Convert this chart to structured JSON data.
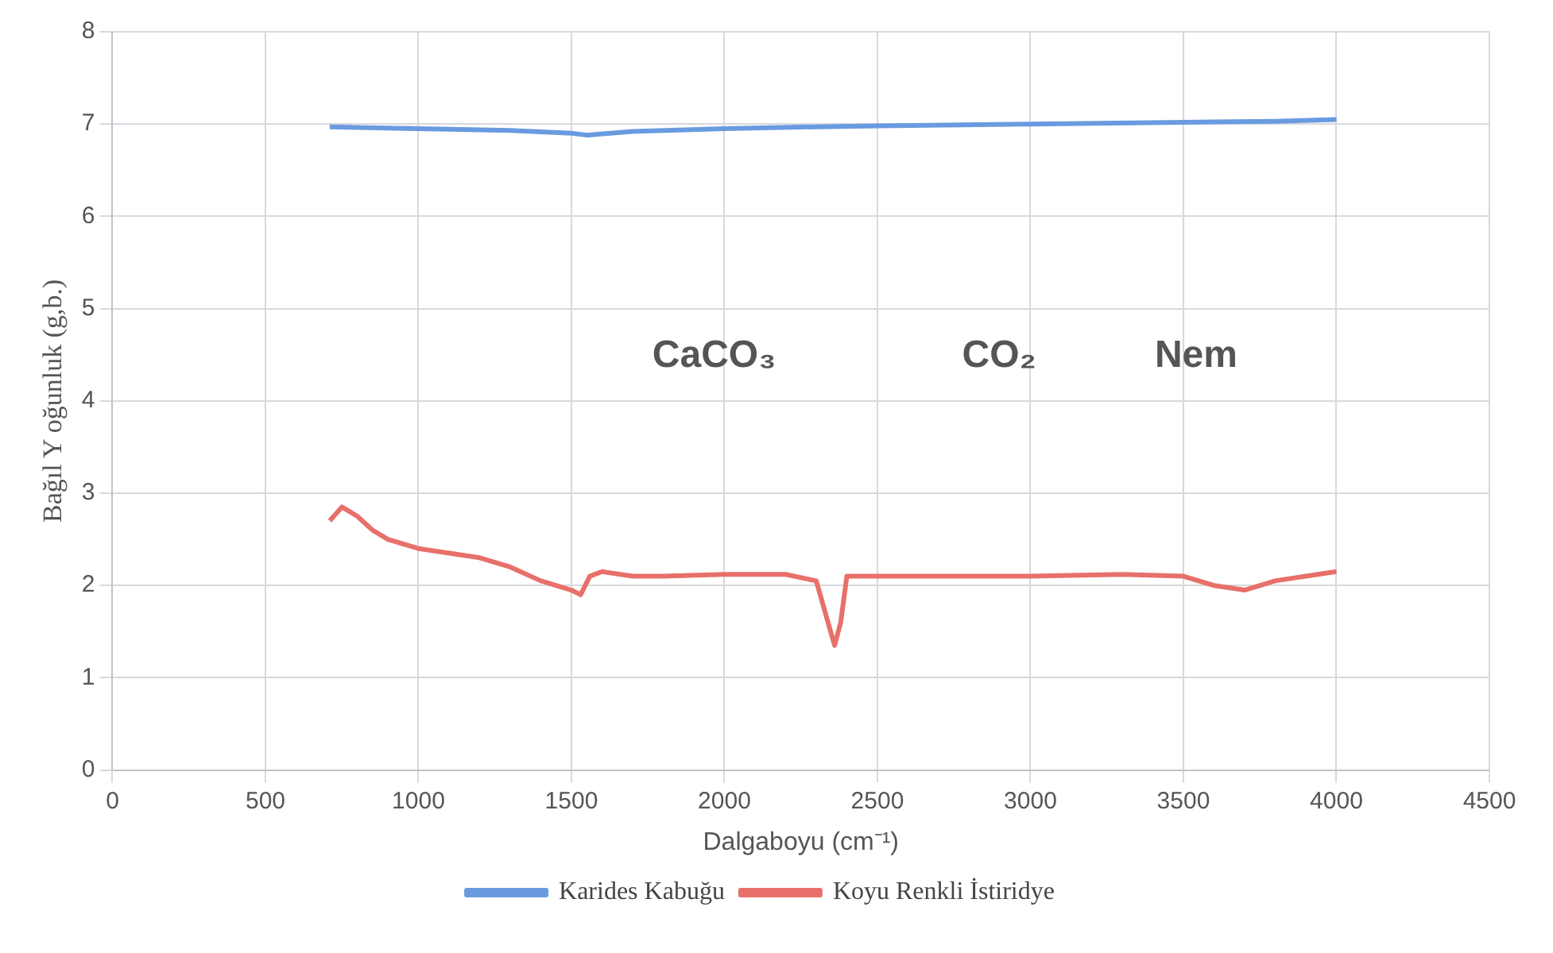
{
  "chart_data": {
    "type": "line",
    "xlabel": "Dalgaboyu (cm⁻¹)",
    "ylabel": "Bağıl Y oğunluk (g,b.)",
    "xlim": [
      0,
      4500
    ],
    "xticks": [
      0,
      500,
      1000,
      1500,
      2000,
      2500,
      3000,
      3500,
      4000,
      4500
    ],
    "ylim": [
      0,
      8
    ],
    "yticks": [
      0,
      1,
      2,
      3,
      4,
      5,
      6,
      7,
      8
    ],
    "grid": true,
    "legend": "bottom",
    "marker": "none",
    "line_style": "solid",
    "series": [
      {
        "name": "Karides Kabuğu",
        "color": "#6a9be0",
        "x": [
          710,
          1000,
          1300,
          1500,
          1550,
          1700,
          2000,
          2300,
          2500,
          3000,
          3500,
          3800,
          4000
        ],
        "values": [
          6.97,
          6.95,
          6.93,
          6.9,
          6.88,
          6.92,
          6.95,
          6.97,
          6.98,
          7.0,
          7.02,
          7.03,
          7.05
        ]
      },
      {
        "name": "Koyu Renkli İstiridye",
        "color": "#e8706a",
        "x": [
          710,
          750,
          800,
          850,
          900,
          1000,
          1100,
          1200,
          1300,
          1400,
          1500,
          1530,
          1560,
          1600,
          1700,
          1800,
          2000,
          2200,
          2300,
          2330,
          2360,
          2380,
          2400,
          2500,
          2800,
          3000,
          3300,
          3500,
          3600,
          3700,
          3800,
          3900,
          4000
        ],
        "values": [
          2.7,
          2.85,
          2.75,
          2.6,
          2.5,
          2.4,
          2.35,
          2.3,
          2.2,
          2.05,
          1.95,
          1.9,
          2.1,
          2.15,
          2.1,
          2.1,
          2.12,
          2.12,
          2.05,
          1.7,
          1.35,
          1.6,
          2.1,
          2.1,
          2.1,
          2.1,
          2.12,
          2.1,
          2.0,
          1.95,
          2.05,
          2.1,
          2.15
        ]
      }
    ],
    "annotations": [
      "CaCO₃",
      "CO₂",
      "Nem"
    ]
  }
}
